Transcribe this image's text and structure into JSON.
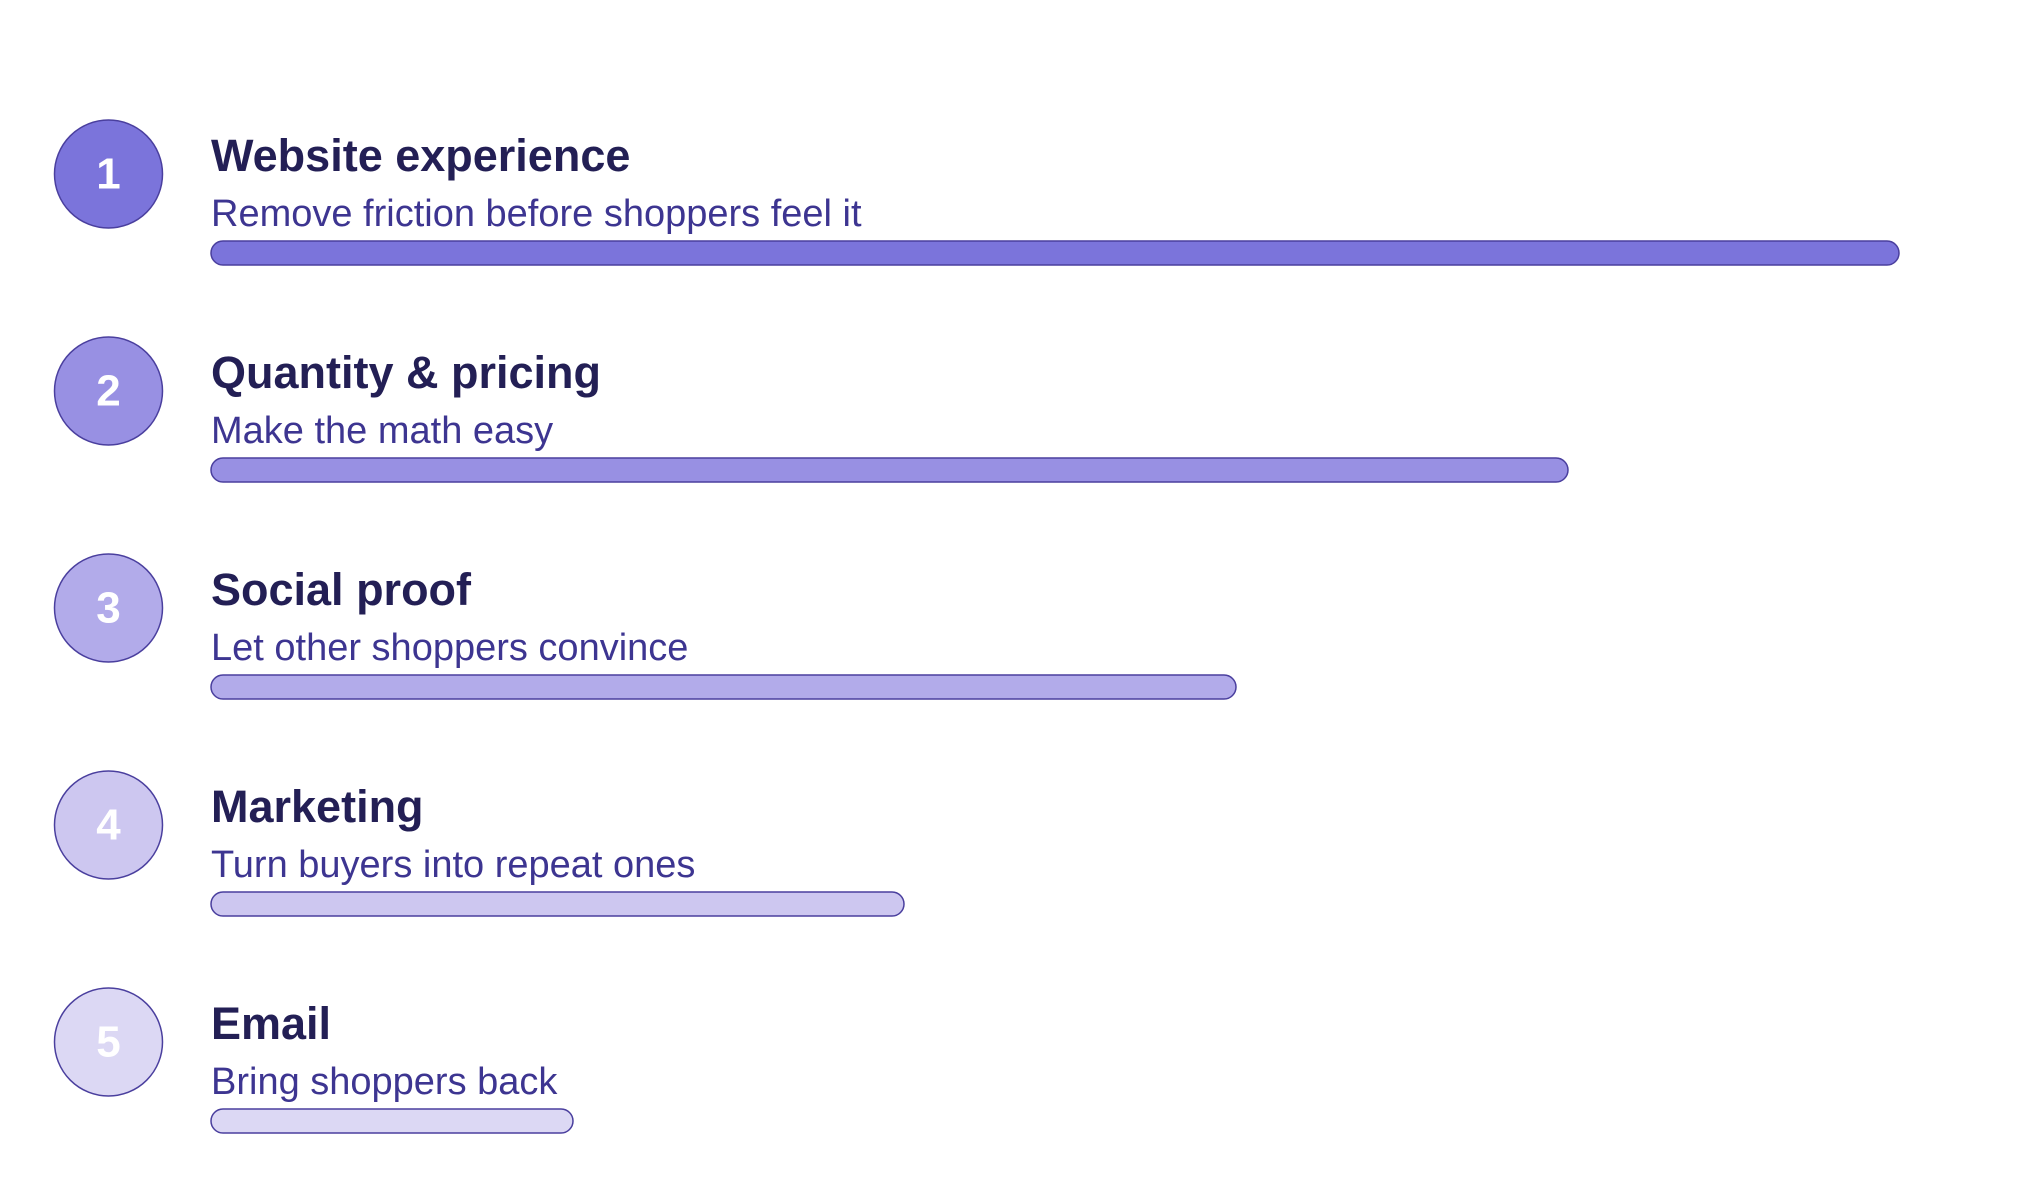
{
  "items": [
    {
      "number": "1",
      "title": "Website experience",
      "subtitle": "Remove friction before shoppers feel it"
    },
    {
      "number": "2",
      "title": "Quantity & pricing",
      "subtitle": "Make the math easy"
    },
    {
      "number": "3",
      "title": "Social proof",
      "subtitle": "Let other shoppers convince"
    },
    {
      "number": "4",
      "title": "Marketing",
      "subtitle": "Turn buyers into repeat ones"
    },
    {
      "number": "5",
      "title": "Email",
      "subtitle": "Bring shoppers back"
    }
  ]
}
